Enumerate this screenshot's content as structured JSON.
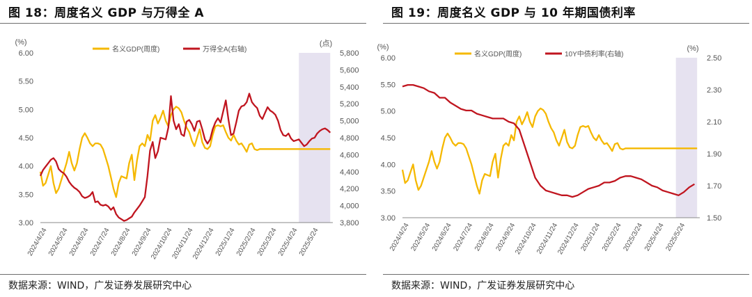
{
  "colors": {
    "gdp": "#f5b800",
    "secondary": "#c0151f",
    "shade": "#e6e2f0",
    "axis": "#888888",
    "text": "#555555"
  },
  "left_panel": {
    "title": "图 18：周度名义 GDP 与万得全 A",
    "source": "数据来源：WIND，广发证券发展研究中心"
  },
  "right_panel": {
    "title": "图 19：周度名义 GDP 与 10 年期国债利率",
    "source": "数据来源：WIND，广发证券发展研究中心"
  },
  "chart_data": [
    {
      "type": "line",
      "x_tick_labels": [
        "2024/4/24",
        "2024/5/24",
        "2024/6/24",
        "2024/7/24",
        "2024/8/24",
        "2024/9/24",
        "2024/10/24",
        "2024/11/24",
        "2024/12/24",
        "2025/1/24",
        "2025/2/24",
        "2025/3/24",
        "2025/4/24",
        "2025/5/24"
      ],
      "x_range": [
        0,
        56
      ],
      "left_axis": {
        "unit": "(%)",
        "range": [
          3.0,
          6.0
        ],
        "ticks": [
          3.0,
          3.5,
          4.0,
          4.5,
          5.0,
          5.5,
          6.0
        ],
        "tick_labels": [
          "3.00",
          "3.50",
          "4.00",
          "4.50",
          "5.00",
          "5.50",
          "6.00"
        ]
      },
      "right_axis": {
        "unit": "(点)",
        "range": [
          3800,
          5800
        ],
        "ticks": [
          3800,
          4000,
          4200,
          4400,
          4600,
          4800,
          5000,
          5200,
          5400,
          5600,
          5800
        ],
        "tick_labels": [
          "3,800",
          "4,000",
          "4,200",
          "4,400",
          "4,600",
          "4,800",
          "5,000",
          "5,200",
          "5,400",
          "5,600",
          "5,800"
        ]
      },
      "shaded_region": [
        49.5,
        55.5
      ],
      "series": [
        {
          "name": "名义GDP(周度)",
          "axis": "left",
          "x": [
            0,
            0.5,
            1,
            1.5,
            2,
            2.5,
            3,
            3.5,
            4,
            4.5,
            5,
            5.5,
            6,
            6.5,
            7,
            7.5,
            8,
            8.5,
            9,
            9.5,
            10,
            10.5,
            11,
            11.5,
            12,
            12.5,
            13,
            13.5,
            14,
            14.5,
            15,
            15.5,
            16,
            16.5,
            17,
            17.5,
            18,
            18.5,
            19,
            19.5,
            20,
            20.5,
            21,
            21.5,
            22,
            22.5,
            23,
            23.5,
            24,
            24.5,
            25,
            25.5,
            26,
            26.5,
            27,
            27.5,
            28,
            28.5,
            29,
            29.5,
            30,
            30.5,
            31,
            31.5,
            32,
            32.5,
            33,
            33.5,
            34,
            34.5,
            35,
            35.5,
            36,
            36.5,
            37,
            37.5,
            38,
            38.5,
            39,
            39.5,
            40,
            40.5,
            41,
            41.5,
            42,
            42.5,
            43,
            43.5,
            44,
            44.5,
            45,
            45.5,
            46,
            46.5,
            47,
            47.5,
            48,
            48.5,
            49,
            49.5,
            50,
            50.5,
            51,
            51.5,
            52,
            52.5,
            53,
            53.5,
            54,
            54.5,
            55,
            55.5
          ],
          "values": [
            3.9,
            3.65,
            3.7,
            3.85,
            4.0,
            3.7,
            3.52,
            3.6,
            3.75,
            3.9,
            4.05,
            4.25,
            4.05,
            3.92,
            4.05,
            4.3,
            4.5,
            4.58,
            4.5,
            4.4,
            4.35,
            4.4,
            4.4,
            4.38,
            4.3,
            4.15,
            4.0,
            3.8,
            3.6,
            3.45,
            3.7,
            3.82,
            3.8,
            3.78,
            4.05,
            4.2,
            3.75,
            4.1,
            4.35,
            4.4,
            4.35,
            4.55,
            4.45,
            4.8,
            4.9,
            4.75,
            4.85,
            4.98,
            4.8,
            4.7,
            4.9,
            5.0,
            5.05,
            5.02,
            4.95,
            4.8,
            4.68,
            4.6,
            4.45,
            4.35,
            4.5,
            4.65,
            4.42,
            4.32,
            4.3,
            4.35,
            4.55,
            4.7,
            4.72,
            4.7,
            4.72,
            4.6,
            4.5,
            4.45,
            4.55,
            4.45,
            4.38,
            4.4,
            4.33,
            4.25,
            4.38,
            4.4,
            4.3,
            4.28,
            4.3,
            4.3,
            4.3,
            4.3,
            4.3,
            4.3,
            4.3,
            4.3,
            4.3,
            4.3,
            4.3,
            4.3,
            4.3,
            4.3,
            4.3,
            4.3,
            4.3,
            4.3,
            4.3,
            4.3,
            4.3,
            4.3,
            4.3,
            4.3,
            4.3,
            4.3,
            4.3,
            4.3
          ]
        },
        {
          "name": "万得全A(右轴)",
          "axis": "right",
          "x": [
            0,
            0.5,
            1,
            1.5,
            2,
            2.5,
            3,
            3.5,
            4,
            4.5,
            5,
            5.5,
            6,
            6.5,
            7,
            7.5,
            8,
            8.5,
            9,
            9.5,
            10,
            10.5,
            11,
            11.5,
            12,
            12.5,
            13,
            13.5,
            14,
            14.5,
            15,
            15.5,
            16,
            16.5,
            17,
            17.5,
            18,
            18.5,
            19,
            19.5,
            20,
            20.5,
            21,
            21.5,
            22,
            22.5,
            23,
            23.5,
            24,
            24.5,
            25,
            25.5,
            26,
            26.5,
            27,
            27.5,
            28,
            28.5,
            29,
            29.5,
            30,
            30.5,
            31,
            31.5,
            32,
            32.5,
            33,
            33.5,
            34,
            34.5,
            35,
            35.5,
            36,
            36.5,
            37,
            37.5,
            38,
            38.5,
            39,
            39.5,
            40,
            40.5,
            41,
            41.5,
            42,
            42.5,
            43,
            43.5,
            44,
            44.5,
            45,
            45.5,
            46,
            46.5,
            47,
            47.5,
            48,
            48.5,
            49,
            49.5,
            50,
            50.5,
            51,
            51.5,
            52,
            52.5,
            53,
            53.5,
            54,
            54.5,
            55,
            55.5
          ],
          "values": [
            4350,
            4420,
            4460,
            4500,
            4540,
            4560,
            4520,
            4430,
            4400,
            4380,
            4340,
            4280,
            4240,
            4210,
            4190,
            4160,
            4110,
            4090,
            4100,
            4120,
            4160,
            4040,
            4050,
            4010,
            4000,
            4010,
            3990,
            3950,
            3980,
            3900,
            3860,
            3840,
            3820,
            3830,
            3850,
            3870,
            3920,
            3960,
            4000,
            4050,
            4100,
            4350,
            4650,
            4750,
            4560,
            4640,
            4800,
            4790,
            4780,
            4920,
            5290,
            5000,
            4900,
            4960,
            4840,
            4820,
            4990,
            5010,
            4960,
            4880,
            4990,
            5000,
            4900,
            4780,
            4730,
            4780,
            4900,
            4980,
            5030,
            4980,
            5110,
            5240,
            5020,
            4830,
            4850,
            4980,
            5120,
            5170,
            5180,
            5220,
            5320,
            5220,
            5180,
            5150,
            5060,
            5020,
            5090,
            5160,
            5120,
            5100,
            5070,
            5000,
            4890,
            4830,
            4820,
            4850,
            4790,
            4760,
            4770,
            4780,
            4740,
            4700,
            4720,
            4760,
            4790,
            4800,
            4850,
            4880,
            4900,
            4910,
            4890,
            4860
          ]
        }
      ],
      "legend_placement": "top"
    },
    {
      "type": "line",
      "x_tick_labels": [
        "2024/4/24",
        "2024/5/24",
        "2024/6/24",
        "2024/7/24",
        "2024/8/24",
        "2024/9/24",
        "2024/10/24",
        "2024/11/24",
        "2024/12/24",
        "2025/1/24",
        "2025/2/24",
        "2025/3/24",
        "2025/4/24",
        "2025/5/24"
      ],
      "x_range": [
        0,
        56
      ],
      "left_axis": {
        "unit": "(%)",
        "range": [
          3.0,
          6.0
        ],
        "ticks": [
          3.0,
          3.5,
          4.0,
          4.5,
          5.0,
          5.5,
          6.0
        ],
        "tick_labels": [
          "3.00",
          "3.50",
          "4.00",
          "4.50",
          "5.00",
          "5.50",
          "6.00"
        ]
      },
      "right_axis": {
        "unit": "(%)",
        "range": [
          1.5,
          2.5
        ],
        "ticks": [
          1.5,
          1.7,
          1.9,
          2.1,
          2.3,
          2.5
        ],
        "tick_labels": [
          "1.50",
          "1.70",
          "1.90",
          "2.10",
          "2.30",
          "2.50"
        ]
      },
      "shaded_region": [
        51.5,
        55.5
      ],
      "series": [
        {
          "name": "名义GDP(周度)",
          "axis": "left",
          "x": [
            0,
            0.5,
            1,
            1.5,
            2,
            2.5,
            3,
            3.5,
            4,
            4.5,
            5,
            5.5,
            6,
            6.5,
            7,
            7.5,
            8,
            8.5,
            9,
            9.5,
            10,
            10.5,
            11,
            11.5,
            12,
            12.5,
            13,
            13.5,
            14,
            14.5,
            15,
            15.5,
            16,
            16.5,
            17,
            17.5,
            18,
            18.5,
            19,
            19.5,
            20,
            20.5,
            21,
            21.5,
            22,
            22.5,
            23,
            23.5,
            24,
            24.5,
            25,
            25.5,
            26,
            26.5,
            27,
            27.5,
            28,
            28.5,
            29,
            29.5,
            30,
            30.5,
            31,
            31.5,
            32,
            32.5,
            33,
            33.5,
            34,
            34.5,
            35,
            35.5,
            36,
            36.5,
            37,
            37.5,
            38,
            38.5,
            39,
            39.5,
            40,
            40.5,
            41,
            41.5,
            42,
            42.5,
            43,
            43.5,
            44,
            44.5,
            45,
            45.5,
            46,
            46.5,
            47,
            47.5,
            48,
            48.5,
            49,
            49.5,
            50,
            50.5,
            51,
            51.5,
            52,
            52.5,
            53,
            53.5,
            54,
            54.5,
            55,
            55.5
          ],
          "values": [
            3.9,
            3.65,
            3.7,
            3.85,
            4.0,
            3.7,
            3.52,
            3.6,
            3.75,
            3.9,
            4.05,
            4.25,
            4.05,
            3.92,
            4.05,
            4.3,
            4.5,
            4.58,
            4.5,
            4.4,
            4.35,
            4.4,
            4.4,
            4.38,
            4.3,
            4.15,
            4.0,
            3.8,
            3.6,
            3.45,
            3.7,
            3.82,
            3.8,
            3.78,
            4.05,
            4.2,
            3.75,
            4.1,
            4.35,
            4.4,
            4.35,
            4.55,
            4.45,
            4.8,
            4.9,
            4.75,
            4.85,
            4.98,
            4.8,
            4.7,
            4.9,
            5.0,
            5.05,
            5.02,
            4.95,
            4.8,
            4.68,
            4.6,
            4.45,
            4.35,
            4.5,
            4.65,
            4.42,
            4.32,
            4.3,
            4.35,
            4.55,
            4.7,
            4.72,
            4.7,
            4.72,
            4.6,
            4.5,
            4.45,
            4.55,
            4.45,
            4.38,
            4.4,
            4.33,
            4.25,
            4.38,
            4.4,
            4.3,
            4.28,
            4.3,
            4.3,
            4.3,
            4.3,
            4.3,
            4.3,
            4.3,
            4.3,
            4.3,
            4.3,
            4.3,
            4.3,
            4.3,
            4.3,
            4.3,
            4.3,
            4.3,
            4.3,
            4.3,
            4.3,
            4.3,
            4.3,
            4.3,
            4.3,
            4.3,
            4.3,
            4.3,
            4.3
          ]
        },
        {
          "name": "10Y中债利率(右轴)",
          "axis": "right",
          "x": [
            0,
            1,
            2,
            3,
            4,
            5,
            6,
            7,
            8,
            9,
            10,
            11,
            12,
            13,
            14,
            15,
            16,
            17,
            18,
            19,
            20,
            21,
            22,
            23,
            24,
            25,
            26,
            27,
            28,
            29,
            30,
            31,
            32,
            33,
            34,
            35,
            36,
            37,
            38,
            39,
            40,
            41,
            42,
            43,
            44,
            45,
            46,
            47,
            48,
            49,
            50,
            51,
            52,
            53,
            54,
            55
          ],
          "values": [
            2.32,
            2.33,
            2.33,
            2.32,
            2.31,
            2.29,
            2.28,
            2.25,
            2.25,
            2.22,
            2.2,
            2.18,
            2.17,
            2.17,
            2.15,
            2.14,
            2.13,
            2.12,
            2.12,
            2.12,
            2.1,
            2.09,
            2.05,
            1.95,
            1.85,
            1.75,
            1.7,
            1.67,
            1.66,
            1.65,
            1.64,
            1.64,
            1.63,
            1.64,
            1.66,
            1.68,
            1.69,
            1.7,
            1.72,
            1.72,
            1.73,
            1.75,
            1.76,
            1.76,
            1.75,
            1.74,
            1.72,
            1.7,
            1.69,
            1.67,
            1.66,
            1.65,
            1.64,
            1.66,
            1.69,
            1.71
          ]
        }
      ],
      "legend_placement": "top"
    }
  ]
}
